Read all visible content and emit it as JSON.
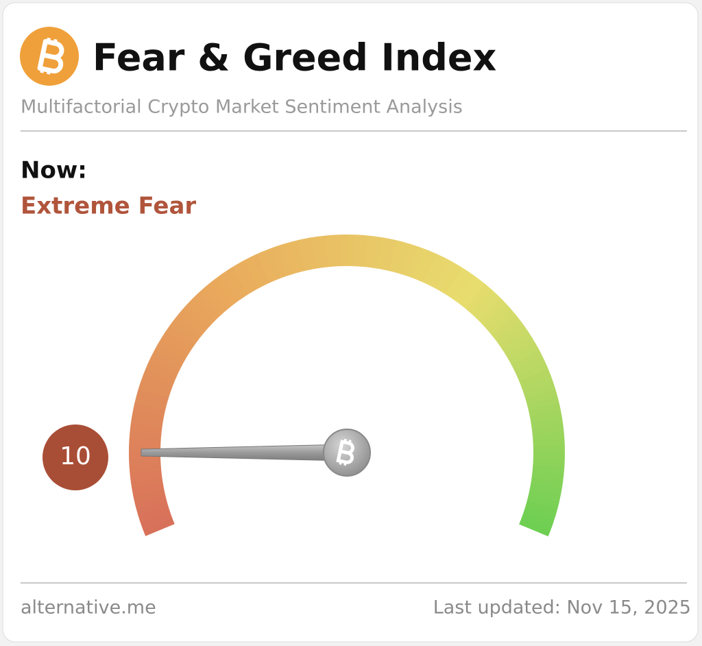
{
  "chart_data": {
    "type": "gauge",
    "title": "Fear & Greed Index",
    "subtitle": "Multifactorial Crypto Market Sentiment Analysis",
    "status_heading": "Now:",
    "status": "Extreme Fear",
    "status_color": "#b0553c",
    "value": 10,
    "badge_color": "#a94e36",
    "ylim": [
      0,
      100
    ],
    "colors": [
      "#d8705a",
      "#e9a95c",
      "#e8dd6e",
      "#6ccf52"
    ],
    "source": "alternative.me",
    "updated": "Last updated: Nov 15, 2025"
  }
}
